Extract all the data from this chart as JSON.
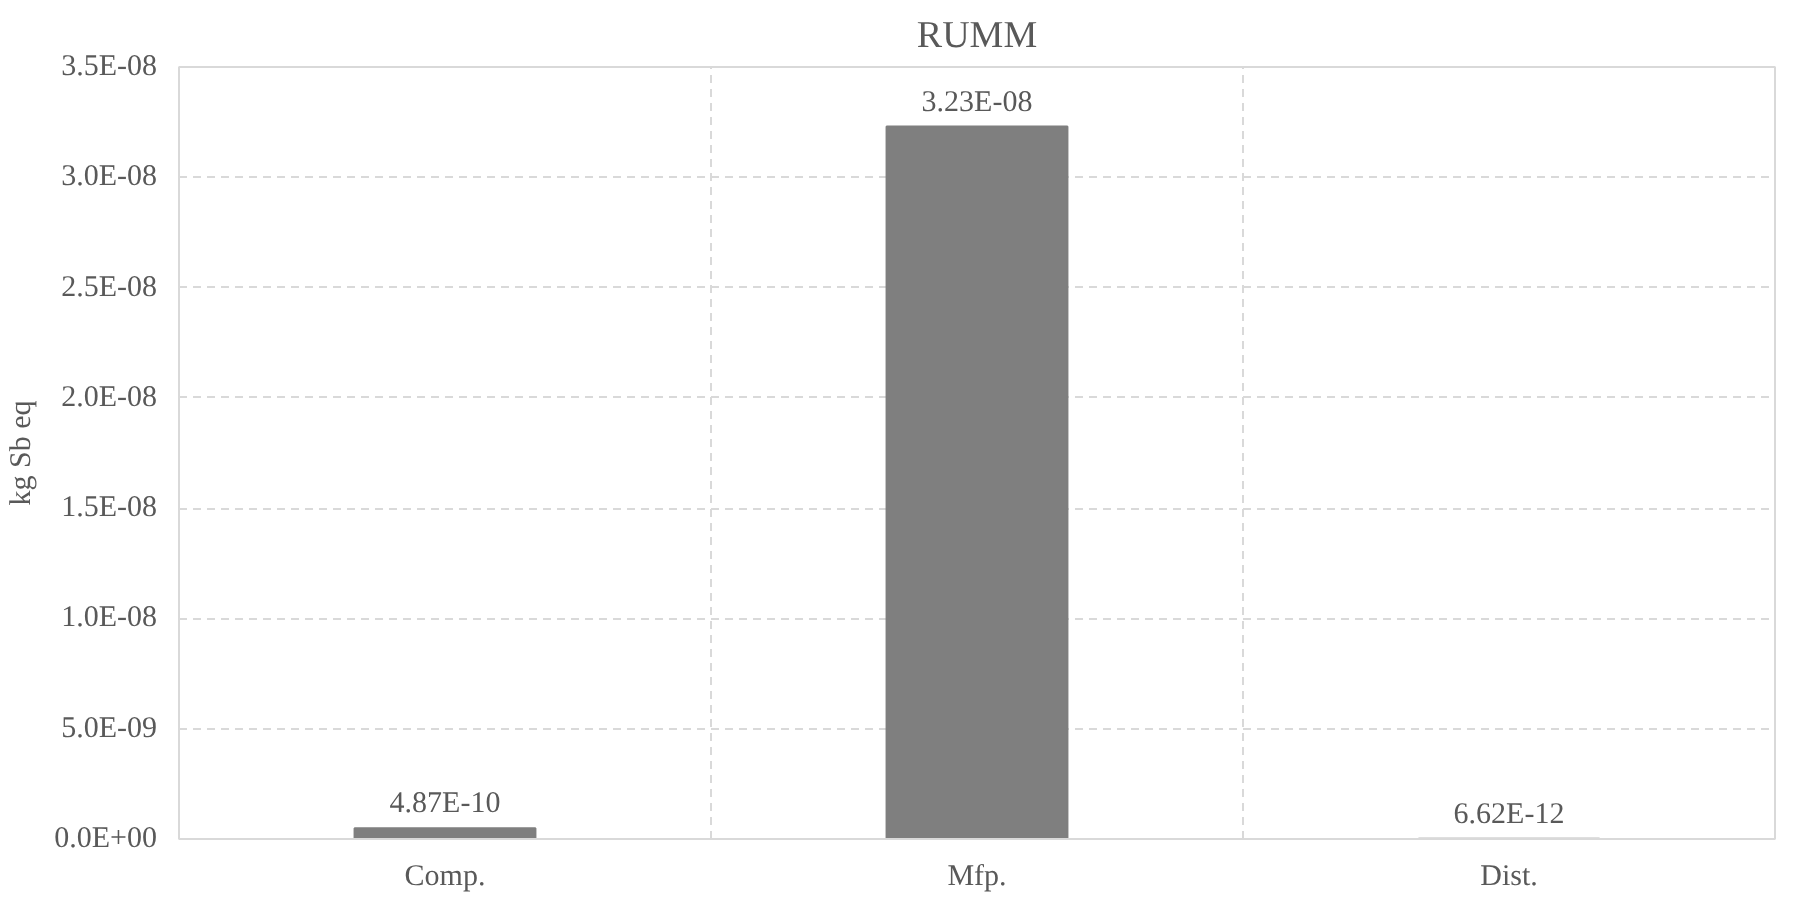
{
  "chart_data": {
    "type": "bar",
    "title": "RUMM",
    "ylabel": "kg Sb eq",
    "categories": [
      "Comp.",
      "Mfp.",
      "Dist."
    ],
    "values": [
      4.87e-10,
      3.23e-08,
      6.62e-12
    ],
    "value_labels": [
      "4.87E-10",
      "3.23E-08",
      "6.62E-12"
    ],
    "color": "#7f7f7f",
    "ylim": [
      0,
      3.5e-08
    ],
    "yticks": [
      {
        "value": 0,
        "label": "0.0E+00"
      },
      {
        "value": 5e-09,
        "label": "5.0E-09"
      },
      {
        "value": 1e-08,
        "label": "1.0E-08"
      },
      {
        "value": 1.5e-08,
        "label": "1.5E-08"
      },
      {
        "value": 2e-08,
        "label": "2.0E-08"
      },
      {
        "value": 2.5e-08,
        "label": "2.5E-08"
      },
      {
        "value": 3e-08,
        "label": "3.0E-08"
      },
      {
        "value": 3.5e-08,
        "label": "3.5E-08"
      }
    ],
    "grid": true
  }
}
